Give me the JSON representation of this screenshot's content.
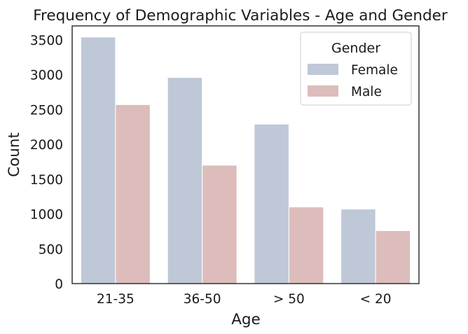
{
  "chart_data": {
    "type": "bar",
    "title": "Frequency of Demographic Variables - Age and Gender",
    "xlabel": "Age",
    "ylabel": "Count",
    "categories": [
      "21-35",
      "36-50",
      "> 50",
      "< 20"
    ],
    "ylim": [
      0,
      3700
    ],
    "yticks": [
      0,
      500,
      1000,
      1500,
      2000,
      2500,
      3000,
      3500
    ],
    "grid": false,
    "legend": {
      "title": "Gender",
      "placement": "top-right"
    },
    "series": [
      {
        "name": "Female",
        "color": "#bfc8d7",
        "values": [
          3540,
          2960,
          2290,
          1070
        ]
      },
      {
        "name": "Male",
        "color": "#dcbdbb",
        "values": [
          2570,
          1700,
          1100,
          760
        ]
      }
    ]
  }
}
